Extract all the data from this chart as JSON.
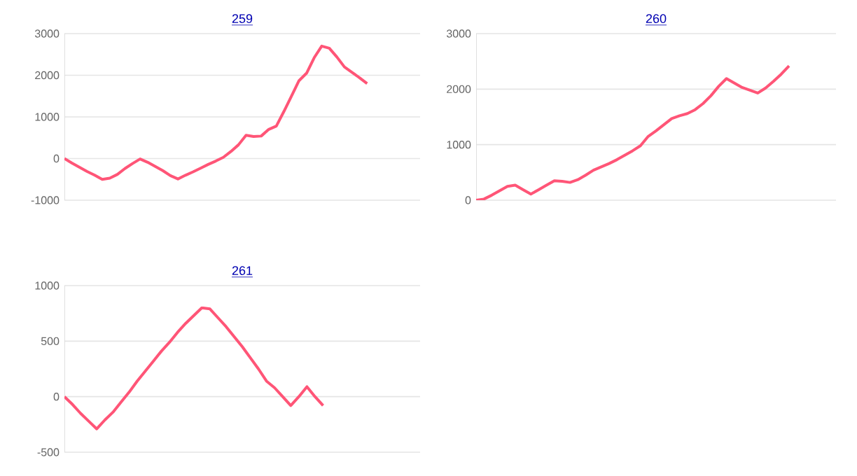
{
  "chart_data": [
    {
      "type": "line",
      "title": "259",
      "color": "#ff5577",
      "grid": "y",
      "tick_labels": "y",
      "ylim": [
        -1000,
        3000
      ],
      "yticks": [
        -1000,
        0,
        1000,
        2000,
        3000
      ],
      "categories": [
        null,
        null,
        null,
        null,
        null,
        null,
        null,
        null,
        null,
        null,
        null,
        null,
        null,
        null,
        null,
        null,
        null,
        null,
        null,
        null,
        null,
        null,
        null,
        null,
        null,
        null,
        null,
        null,
        null,
        null,
        null,
        null,
        null,
        null,
        null,
        null,
        null,
        null,
        null,
        null,
        null,
        null,
        null,
        null,
        null,
        null,
        null,
        null
      ],
      "values": [
        0,
        -110,
        -210,
        -310,
        -400,
        -500,
        -470,
        -380,
        -240,
        -120,
        -10,
        -90,
        -190,
        -290,
        -410,
        -490,
        -400,
        -320,
        -230,
        -140,
        -60,
        30,
        170,
        330,
        560,
        530,
        540,
        700,
        780,
        1130,
        1500,
        1870,
        2050,
        2420,
        2700,
        2650,
        2440,
        2200,
        2070,
        1940,
        1800,
        null,
        null,
        null,
        null,
        null,
        null,
        null
      ]
    },
    {
      "type": "line",
      "title": "260",
      "color": "#ff5577",
      "grid": "y",
      "tick_labels": "y",
      "ylim": [
        0,
        3000
      ],
      "yticks": [
        0,
        1000,
        2000,
        3000
      ],
      "categories": [
        null,
        null,
        null,
        null,
        null,
        null,
        null,
        null,
        null,
        null,
        null,
        null,
        null,
        null,
        null,
        null,
        null,
        null,
        null,
        null,
        null,
        null,
        null,
        null,
        null,
        null,
        null,
        null,
        null,
        null,
        null,
        null,
        null,
        null,
        null,
        null,
        null,
        null,
        null,
        null,
        null,
        null,
        null,
        null,
        null,
        null,
        null
      ],
      "values": [
        0,
        20,
        90,
        170,
        250,
        270,
        190,
        110,
        190,
        270,
        350,
        340,
        320,
        370,
        450,
        540,
        600,
        660,
        730,
        810,
        890,
        980,
        1150,
        1250,
        1360,
        1470,
        1520,
        1560,
        1630,
        1740,
        1880,
        2050,
        2190,
        2110,
        2030,
        1980,
        1930,
        2020,
        2140,
        2270,
        2420,
        null,
        null,
        null,
        null,
        null,
        null
      ]
    },
    {
      "type": "line",
      "title": "261",
      "color": "#ff5577",
      "grid": "y",
      "tick_labels": "y",
      "ylim": [
        -500,
        1000
      ],
      "yticks": [
        -500,
        0,
        500,
        1000
      ],
      "categories": [
        null,
        null,
        null,
        null,
        null,
        null,
        null,
        null,
        null,
        null,
        null,
        null,
        null,
        null,
        null,
        null,
        null,
        null,
        null,
        null,
        null,
        null,
        null,
        null,
        null,
        null,
        null,
        null,
        null,
        null,
        null,
        null,
        null,
        null,
        null,
        null,
        null,
        null,
        null,
        null,
        null,
        null,
        null,
        null,
        null
      ],
      "values": [
        0,
        -70,
        -150,
        -220,
        -290,
        -210,
        -140,
        -50,
        40,
        140,
        230,
        320,
        410,
        490,
        580,
        660,
        730,
        800,
        790,
        710,
        630,
        540,
        450,
        350,
        250,
        140,
        80,
        0,
        -80,
        0,
        90,
        0,
        -80,
        null,
        null,
        null,
        null,
        null,
        null,
        null,
        null,
        null,
        null,
        null,
        null
      ]
    }
  ]
}
